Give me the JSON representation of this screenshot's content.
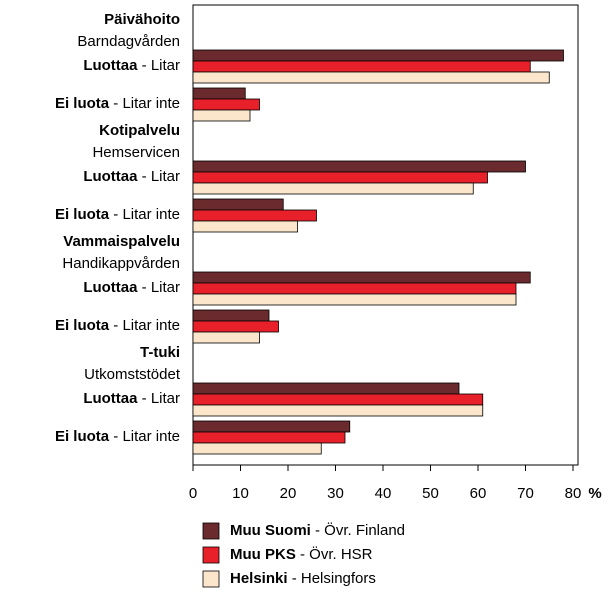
{
  "chart_data": {
    "type": "barh",
    "groups": [
      {
        "name": "Päivähoito",
        "subname": "Barndagvården"
      },
      {
        "name": "Kotipalvelu",
        "subname": "Hemservicen"
      },
      {
        "name": "Vammaispalvelu",
        "subname": "Handikappvården"
      },
      {
        "name": "T-tuki",
        "subname": "Utkomststödet"
      }
    ],
    "categories": [
      "Luottaa - Litar",
      "Ei luota - Litar inte",
      "Luottaa - Litar",
      "Ei luota - Litar inte",
      "Luottaa - Litar",
      "Ei luota - Litar inte",
      "Luottaa - Litar",
      "Ei luota - Litar inte"
    ],
    "series": [
      {
        "name": "Muu Suomi - Övr. Finland",
        "color": "#6b2a2e",
        "values": [
          78,
          11,
          70,
          19,
          71,
          16,
          56,
          33
        ]
      },
      {
        "name": "Muu PKS - Övr. HSR",
        "color": "#e8202a",
        "values": [
          71,
          14,
          62,
          26,
          68,
          18,
          61,
          32
        ]
      },
      {
        "name": "Helsinki - Helsingfors",
        "color": "#fbe6cc",
        "values": [
          75,
          12,
          59,
          22,
          68,
          14,
          61,
          27
        ]
      }
    ],
    "xlim": [
      0,
      80
    ],
    "xticks": [
      0,
      10,
      20,
      30,
      40,
      50,
      60,
      70,
      80
    ],
    "x_unit": "%"
  }
}
